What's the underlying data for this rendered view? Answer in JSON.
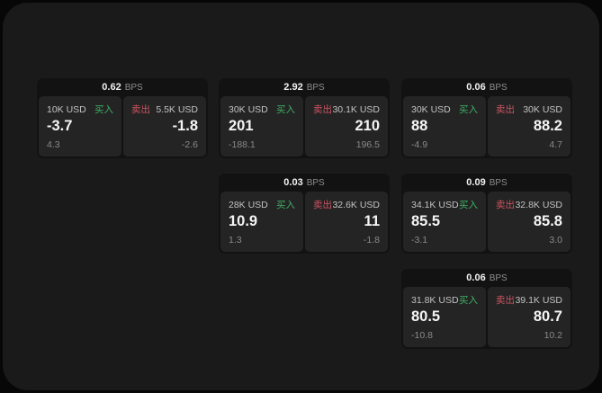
{
  "labels": {
    "bps_suffix": "BPS",
    "buy": "买入",
    "sell": "卖出"
  },
  "colors": {
    "page_bg": "#070707",
    "panel_bg": "#1a1a1a",
    "card_bg": "#121212",
    "tile_bg": "#242424",
    "buy_green": "#3fae63",
    "sell_red": "#cd5360",
    "value_white": "#f5f5f5",
    "muted_gray": "#8a8a8a"
  },
  "cards": [
    {
      "bps": "0.62",
      "buy": {
        "amount": "10K USD",
        "value": "-3.7",
        "sub": "4.3"
      },
      "sell": {
        "amount": "5.5K USD",
        "value": "-1.8",
        "sub": "-2.6"
      }
    },
    {
      "bps": "2.92",
      "buy": {
        "amount": "30K USD",
        "value": "201",
        "sub": "-188.1"
      },
      "sell": {
        "amount": "30.1K USD",
        "value": "210",
        "sub": "196.5"
      }
    },
    {
      "bps": "0.06",
      "buy": {
        "amount": "30K USD",
        "value": "88",
        "sub": "-4.9"
      },
      "sell": {
        "amount": "30K USD",
        "value": "88.2",
        "sub": "4.7"
      }
    },
    {
      "bps": "0.03",
      "buy": {
        "amount": "28K USD",
        "value": "10.9",
        "sub": "1.3"
      },
      "sell": {
        "amount": "32.6K USD",
        "value": "11",
        "sub": "-1.8"
      }
    },
    {
      "bps": "0.09",
      "buy": {
        "amount": "34.1K USD",
        "value": "85.5",
        "sub": "-3.1"
      },
      "sell": {
        "amount": "32.8K USD",
        "value": "85.8",
        "sub": "3.0"
      }
    },
    {
      "bps": "0.06",
      "buy": {
        "amount": "31.8K USD",
        "value": "80.5",
        "sub": "-10.8"
      },
      "sell": {
        "amount": "39.1K USD",
        "value": "80.7",
        "sub": "10.2"
      }
    }
  ]
}
